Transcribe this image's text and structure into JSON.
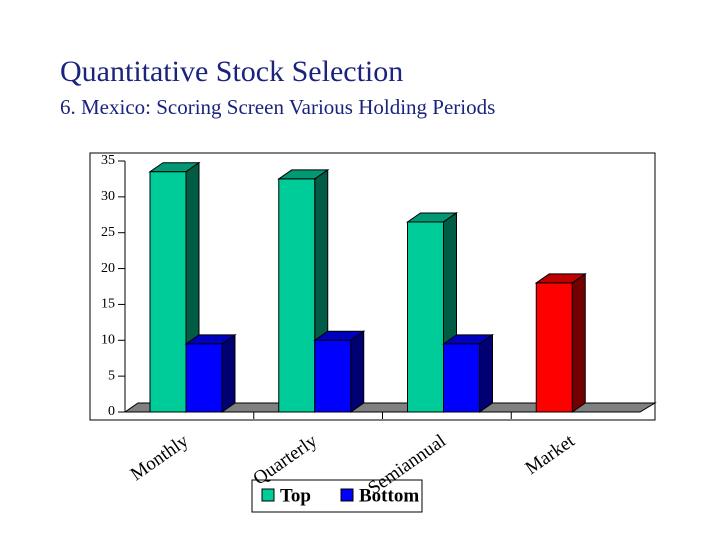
{
  "chart_data": {
    "type": "bar3d",
    "title": "Quantitative Stock Selection",
    "subtitle": "6. Mexico: Scoring Screen Various Holding Periods",
    "categories": [
      "Monthly",
      "Quarterly",
      "Semiannual",
      "Market"
    ],
    "series": [
      {
        "name": "Top",
        "color": "#00cc99",
        "colors": [
          "#00cc99",
          "#00cc99",
          "#00cc99",
          "#ff0000"
        ],
        "values": [
          33.5,
          32.5,
          26.5,
          18
        ]
      },
      {
        "name": "Bottom",
        "color": "#0000ff",
        "values": [
          9.5,
          10,
          9.5,
          null
        ]
      }
    ],
    "ylim": [
      0,
      35
    ],
    "yticks": [
      0,
      5,
      10,
      15,
      20,
      25,
      30,
      35
    ]
  }
}
